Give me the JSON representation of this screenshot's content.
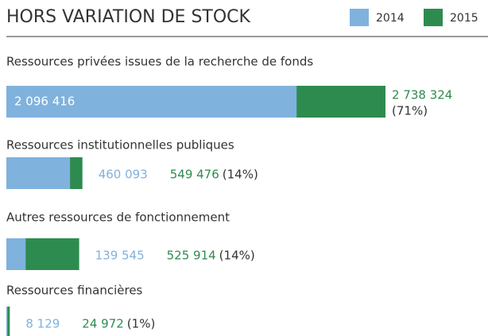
{
  "chart_data": {
    "type": "bar",
    "title": "HORS VARIATION DE STOCK",
    "categories": [
      "Ressources privées issues de la recherche de fonds",
      "Ressources institutionnelles publiques",
      "Autres ressources  de fonctionnement",
      "Ressources financières"
    ],
    "series": [
      {
        "name": "2014",
        "color": "#7fb2dd",
        "values": [
          2096416,
          460093,
          139545,
          8129
        ],
        "value_labels": [
          "2 096 416",
          "460 093",
          "139 545",
          "8 129"
        ]
      },
      {
        "name": "2015",
        "color": "#2e8b4f",
        "values": [
          2738324,
          549476,
          525914,
          24972
        ],
        "value_labels": [
          "2 738 324",
          "549 476",
          "525 914",
          "24 972"
        ],
        "shares": [
          "(71%)",
          "(14%)",
          "(14%)",
          "(1%)"
        ]
      }
    ]
  }
}
